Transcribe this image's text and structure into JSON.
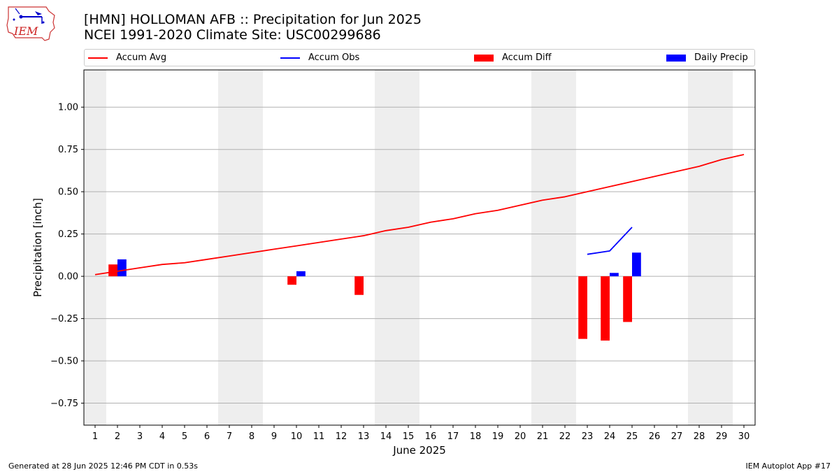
{
  "logo": {
    "text": "IEM"
  },
  "header": {
    "title_line1": "[HMN] HOLLOMAN AFB :: Precipitation for Jun 2025",
    "title_line2": "NCEI 1991-2020 Climate Site: USC00299686"
  },
  "footer": {
    "left": "Generated at 28 Jun 2025 12:46 PM CDT in 0.53s",
    "right": "IEM Autoplot App #17"
  },
  "colors": {
    "accum_avg": "#ff0000",
    "accum_obs": "#0000ff",
    "accum_diff": "#ff0000",
    "daily_precip": "#0000ff",
    "weekend_band": "#eeeeee",
    "grid": "#b0b0b0"
  },
  "chart_data": {
    "type": "bar",
    "xlabel": "June 2025",
    "ylabel": "Precipitation [inch]",
    "xlim": [
      0.5,
      30.5
    ],
    "ylim": [
      -0.88,
      1.22
    ],
    "yticks": [
      -0.75,
      -0.5,
      -0.25,
      0.0,
      0.25,
      0.5,
      0.75,
      1.0
    ],
    "ytick_labels": [
      "−0.75",
      "−0.50",
      "−0.25",
      "0.00",
      "0.25",
      "0.50",
      "0.75",
      "1.00"
    ],
    "xticks": [
      1,
      2,
      3,
      4,
      5,
      6,
      7,
      8,
      9,
      10,
      11,
      12,
      13,
      14,
      15,
      16,
      17,
      18,
      19,
      20,
      21,
      22,
      23,
      24,
      25,
      26,
      27,
      28,
      29,
      30
    ],
    "grid": "horizontal",
    "legend_position": "top",
    "weekend_bands": [
      [
        0.5,
        1.5
      ],
      [
        6.5,
        8.5
      ],
      [
        13.5,
        15.5
      ],
      [
        20.5,
        22.5
      ],
      [
        27.5,
        29.5
      ]
    ],
    "series": [
      {
        "name": "Accum Avg",
        "type": "line",
        "x": [
          1,
          2,
          3,
          4,
          5,
          6,
          7,
          8,
          9,
          10,
          11,
          12,
          13,
          14,
          15,
          16,
          17,
          18,
          19,
          20,
          21,
          22,
          23,
          24,
          25,
          26,
          27,
          28,
          29,
          30
        ],
        "values": [
          0.01,
          0.03,
          0.05,
          0.07,
          0.08,
          0.1,
          0.12,
          0.14,
          0.16,
          0.18,
          0.2,
          0.22,
          0.24,
          0.27,
          0.29,
          0.32,
          0.34,
          0.37,
          0.39,
          0.42,
          0.45,
          0.47,
          0.5,
          0.53,
          0.56,
          0.59,
          0.62,
          0.65,
          0.69,
          0.72
        ]
      },
      {
        "name": "Accum Obs",
        "type": "line",
        "x": [
          23,
          24,
          25
        ],
        "values": [
          0.13,
          0.15,
          0.29
        ]
      },
      {
        "name": "Accum Diff",
        "type": "bar",
        "x": [
          2,
          10,
          13,
          23,
          24,
          25
        ],
        "values": [
          0.07,
          -0.05,
          -0.11,
          -0.37,
          -0.38,
          -0.27
        ]
      },
      {
        "name": "Daily Precip",
        "type": "bar",
        "x": [
          2,
          10,
          24,
          25
        ],
        "values": [
          0.1,
          0.03,
          0.02,
          0.14
        ]
      }
    ]
  }
}
